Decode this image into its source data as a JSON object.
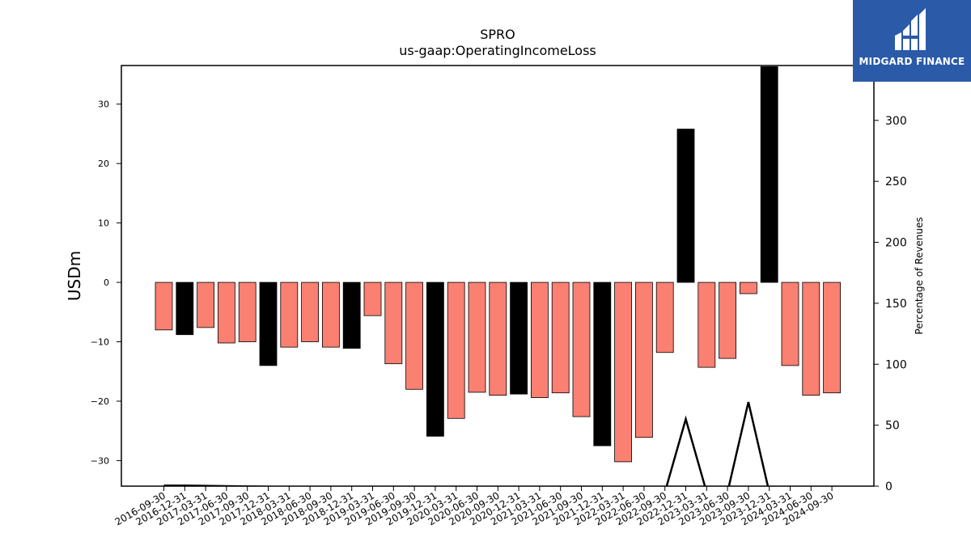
{
  "chart_data": {
    "type": "bar",
    "title": "SPRO",
    "subtitle": "us-gaap:OperatingIncomeLoss",
    "ylabel": "USDm",
    "ylabel_right": "Percentage of Revenues",
    "ylim": [
      -34.3,
      36.5
    ],
    "ylim_right": [
      0,
      345
    ],
    "yticks": [
      -30,
      -20,
      -10,
      0,
      10,
      20,
      30
    ],
    "yticks_right": [
      0,
      50,
      100,
      150,
      200,
      250,
      300
    ],
    "categories": [
      "2016-09-30",
      "2016-12-31",
      "2017-03-31",
      "2017-06-30",
      "2017-09-30",
      "2017-12-31",
      "2018-03-31",
      "2018-06-30",
      "2018-09-30",
      "2018-12-31",
      "2019-03-31",
      "2019-06-30",
      "2019-09-30",
      "2019-12-31",
      "2020-03-31",
      "2020-06-30",
      "2020-09-30",
      "2020-12-31",
      "2021-03-31",
      "2021-06-30",
      "2021-09-30",
      "2021-12-31",
      "2022-03-31",
      "2022-06-30",
      "2022-09-30",
      "2022-12-31",
      "2023-03-31",
      "2023-06-30",
      "2023-09-30",
      "2023-12-31",
      "2024-03-31",
      "2024-06-30",
      "2024-09-30"
    ],
    "series": [
      {
        "values": [
          -8.0,
          -8.8,
          -7.6,
          -10.2,
          -10.0,
          -14.0,
          -10.9,
          -10.0,
          -10.9,
          -11.1,
          -5.6,
          -13.7,
          -18.0,
          -25.9,
          -22.9,
          -18.5,
          -19.0,
          -18.8,
          -19.4,
          -18.6,
          -22.6,
          -27.5,
          -30.2,
          -26.1,
          -11.8,
          25.8,
          -14.3,
          -12.8,
          -1.9,
          36.3,
          -14.0,
          -19.0,
          -18.6
        ],
        "highlight": [
          false,
          true,
          false,
          false,
          false,
          true,
          false,
          false,
          false,
          true,
          false,
          false,
          false,
          true,
          false,
          false,
          false,
          true,
          false,
          false,
          false,
          true,
          false,
          false,
          false,
          true,
          false,
          false,
          false,
          true,
          false,
          false,
          false
        ]
      },
      {
        "axis": "right",
        "type": "line",
        "x": [
          "2016-09-30",
          "2016-12-31",
          "2022-09-30",
          "2022-12-31",
          "2023-03-31",
          "2023-06-30",
          "2023-09-30",
          "2023-12-31",
          "2024-03-31"
        ],
        "values": [
          0.5,
          0.5,
          -5,
          55,
          -5,
          -5,
          69,
          -5,
          -5
        ]
      }
    ],
    "colors": {
      "bar": "#fa8072",
      "highlight": "#000000",
      "line": "#000000"
    }
  },
  "logo": {
    "text": "MIDGARD FINANCE"
  }
}
